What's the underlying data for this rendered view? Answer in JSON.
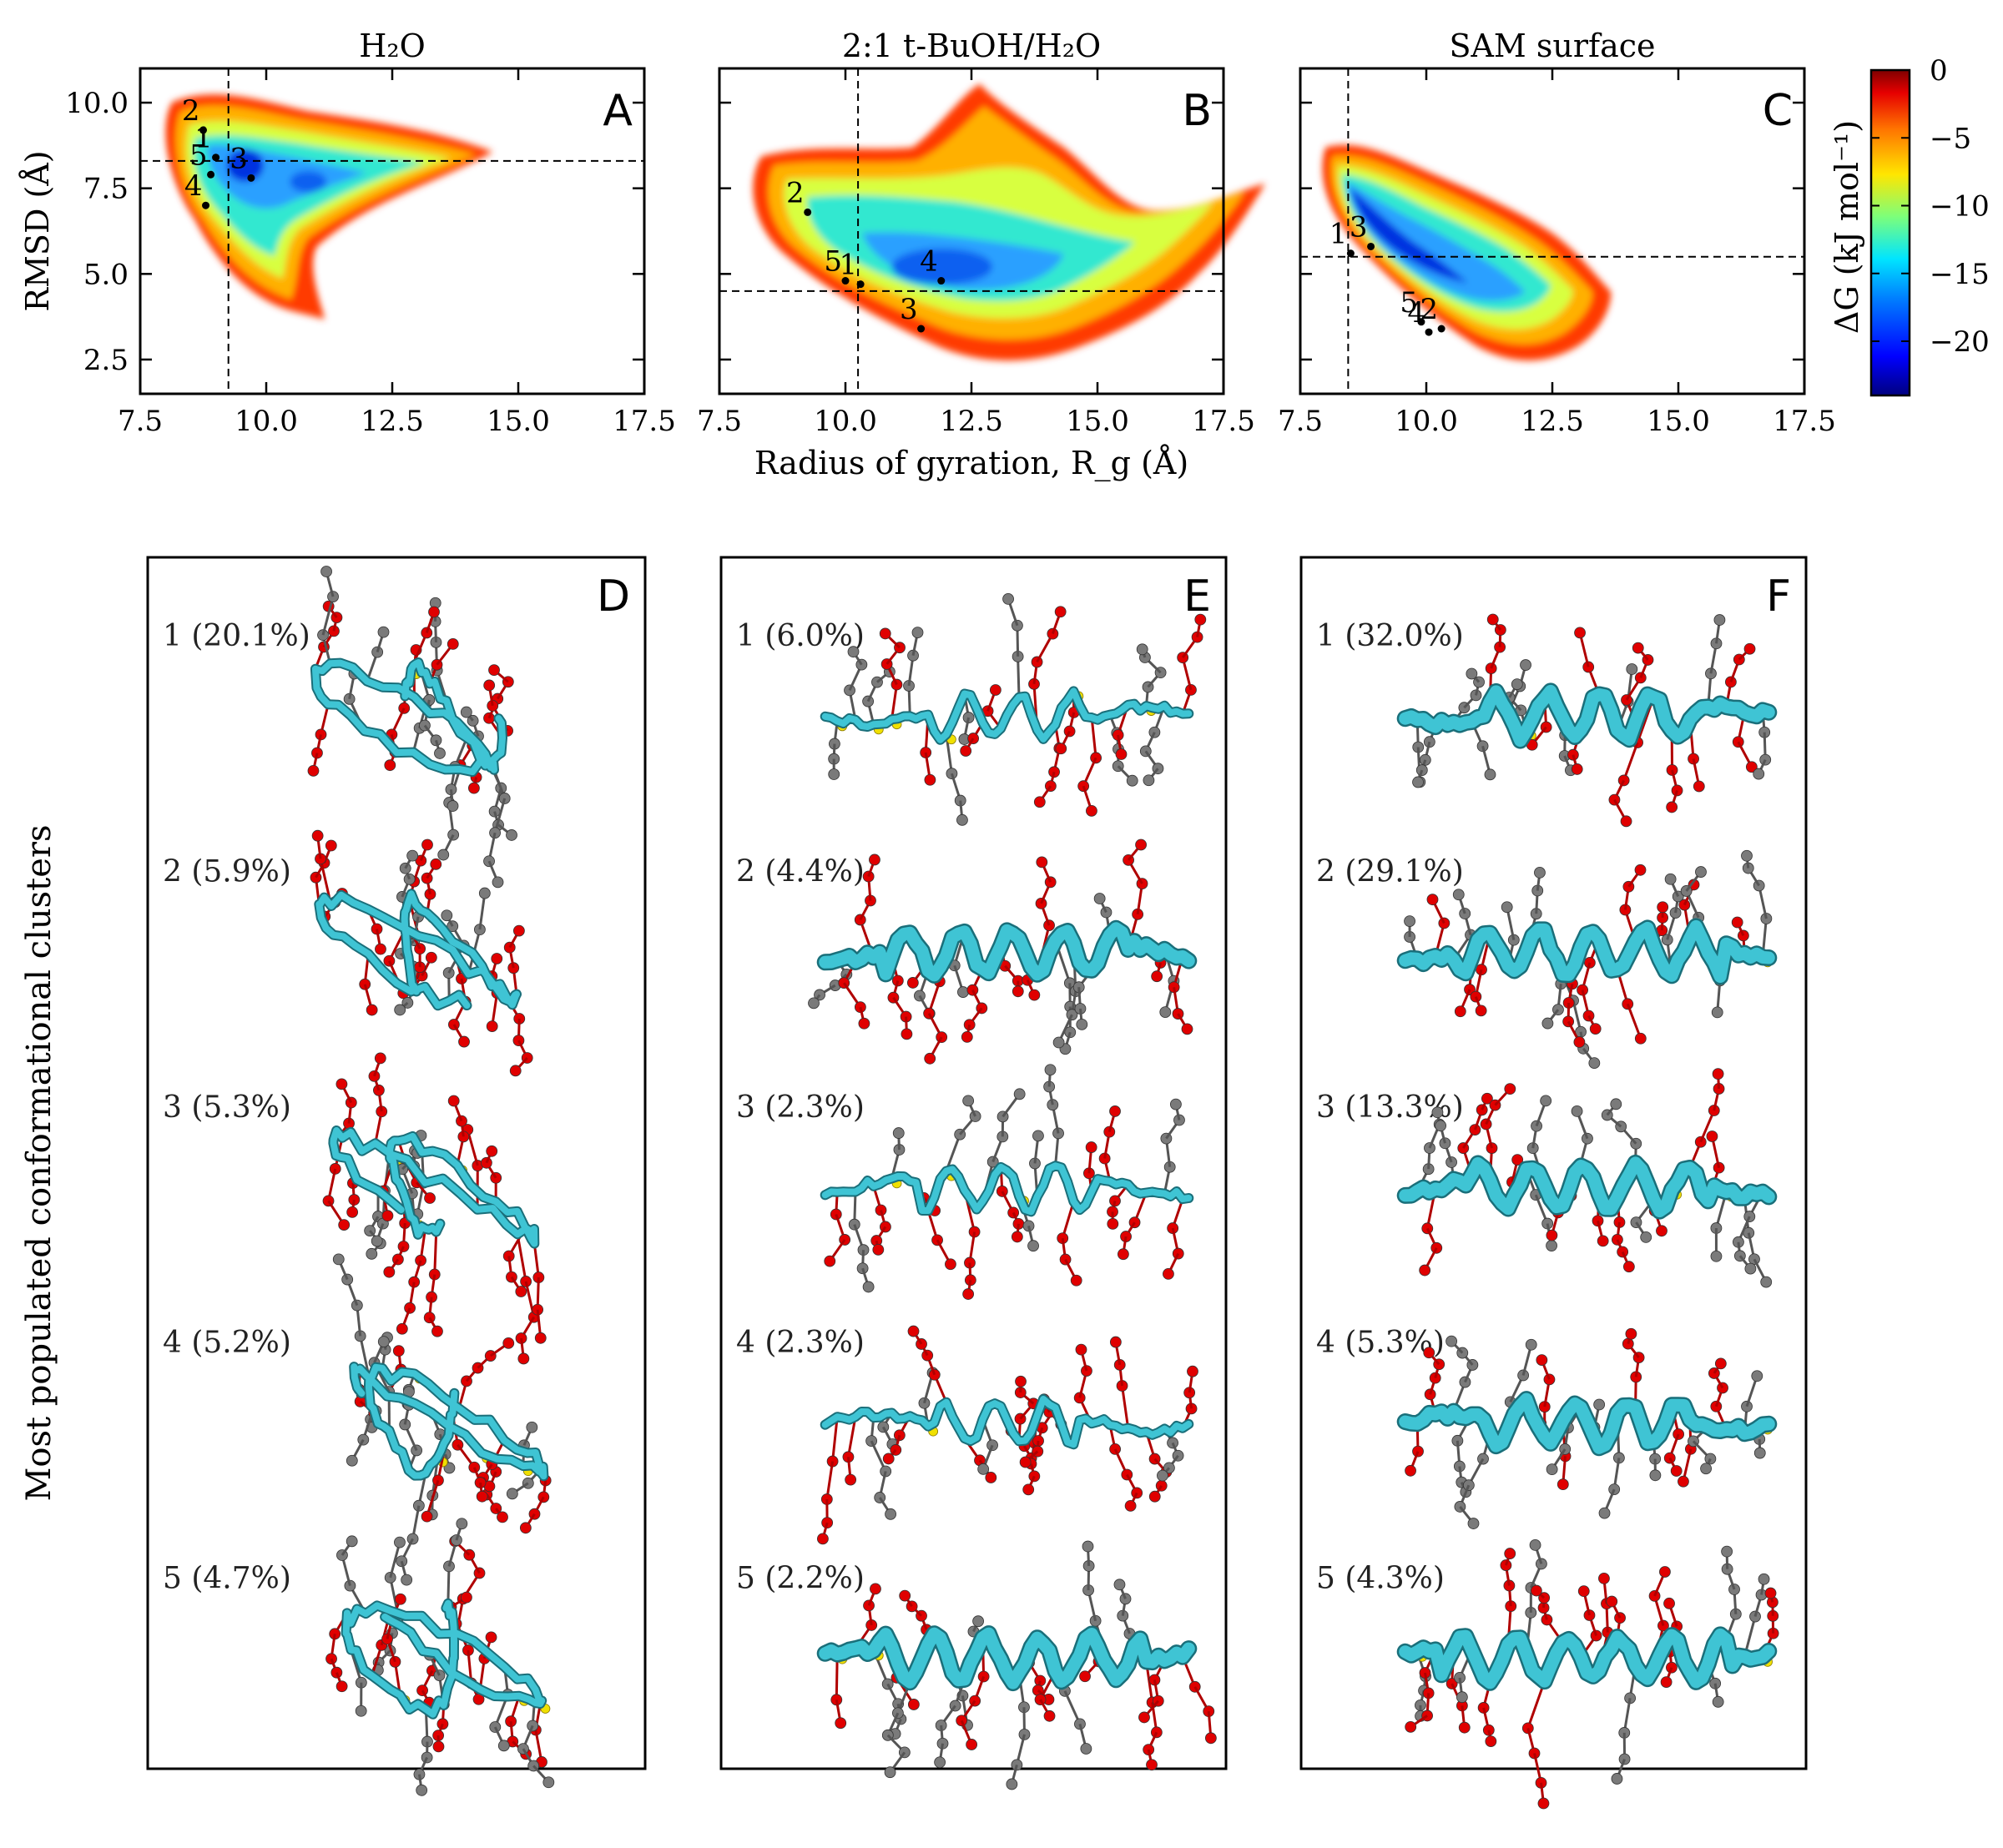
{
  "heatmaps": [
    {
      "letter": "A",
      "title": "H₂O",
      "rg_ref": 9.25,
      "rmsd_ref": 8.3,
      "points": [
        {
          "label": "1",
          "rg": 9.0,
          "rmsd": 8.4
        },
        {
          "label": "2",
          "rg": 8.75,
          "rmsd": 9.2
        },
        {
          "label": "3",
          "rg": 9.7,
          "rmsd": 7.8
        },
        {
          "label": "4",
          "rg": 8.8,
          "rmsd": 7.0
        },
        {
          "label": "5",
          "rg": 8.9,
          "rmsd": 7.9
        }
      ]
    },
    {
      "letter": "B",
      "title": "2:1 t-BuOH/H₂O",
      "rg_ref": 10.25,
      "rmsd_ref": 4.5,
      "points": [
        {
          "label": "1",
          "rg": 10.3,
          "rmsd": 4.7
        },
        {
          "label": "2",
          "rg": 9.25,
          "rmsd": 6.8
        },
        {
          "label": "3",
          "rg": 11.5,
          "rmsd": 3.4
        },
        {
          "label": "4",
          "rg": 11.9,
          "rmsd": 4.8
        },
        {
          "label": "5",
          "rg": 10.0,
          "rmsd": 4.8
        }
      ]
    },
    {
      "letter": "C",
      "title": "SAM surface",
      "rg_ref": 8.45,
      "rmsd_ref": 5.5,
      "points": [
        {
          "label": "1",
          "rg": 8.5,
          "rmsd": 5.6
        },
        {
          "label": "2",
          "rg": 10.3,
          "rmsd": 3.4
        },
        {
          "label": "3",
          "rg": 8.9,
          "rmsd": 5.8
        },
        {
          "label": "4",
          "rg": 10.05,
          "rmsd": 3.3
        },
        {
          "label": "5",
          "rg": 9.9,
          "rmsd": 3.6
        }
      ]
    }
  ],
  "axes": {
    "xlabel": "Radius of gyration, R_g (Å)",
    "ylabel": "RMSD (Å)",
    "xticks": [
      "7.5",
      "10.0",
      "12.5",
      "15.0",
      "17.5"
    ],
    "yticks": [
      "2.5",
      "5.0",
      "7.5",
      "10.0"
    ],
    "xlim": [
      7.5,
      17.5
    ],
    "ylim": [
      1.5,
      11.0
    ]
  },
  "colorbar": {
    "label": "ΔG (kJ mol⁻¹)",
    "ticks": [
      "0",
      "−5",
      "−10",
      "−15",
      "−20"
    ],
    "range": [
      -24,
      0
    ],
    "colors": [
      "#00007f",
      "#0000ff",
      "#0080ff",
      "#00e5ff",
      "#7dff7a",
      "#ffe600",
      "#ff7300",
      "#e60000",
      "#7f0000"
    ]
  },
  "clusters": {
    "side_label": "Most populated conformational clusters",
    "panels": [
      {
        "letter": "D",
        "items": [
          {
            "label": "1 (20.1%)",
            "helix": 0
          },
          {
            "label": "2 (5.9%)",
            "helix": 0
          },
          {
            "label": "3 (5.3%)",
            "helix": 0
          },
          {
            "label": "4 (5.2%)",
            "helix": 0
          },
          {
            "label": "5 (4.7%)",
            "helix": 0
          }
        ]
      },
      {
        "letter": "E",
        "items": [
          {
            "label": "1 (6.0%)",
            "helix": 0.45
          },
          {
            "label": "2 (4.4%)",
            "helix": 0.7
          },
          {
            "label": "3 (2.3%)",
            "helix": 0.5
          },
          {
            "label": "4 (2.3%)",
            "helix": 0.4
          },
          {
            "label": "5 (2.2%)",
            "helix": 0.75
          }
        ]
      },
      {
        "letter": "F",
        "items": [
          {
            "label": "1 (32.0%)",
            "helix": 0.6
          },
          {
            "label": "2 (29.1%)",
            "helix": 0.75
          },
          {
            "label": "3 (13.3%)",
            "helix": 0.7
          },
          {
            "label": "4 (5.3%)",
            "helix": 0.6
          },
          {
            "label": "5 (4.3%)",
            "helix": 0.8
          }
        ]
      }
    ]
  },
  "colors": {
    "backbone": "#3fc4d4",
    "oxygen": "#e00000",
    "carbon": "#7a7a7a",
    "sulfur": "#f0e000"
  }
}
